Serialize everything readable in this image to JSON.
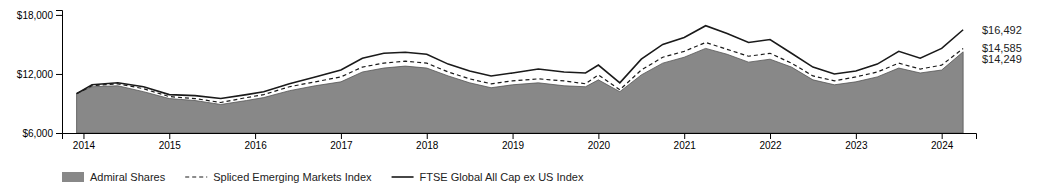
{
  "chart_data": {
    "type": "line",
    "x": [
      2013.92,
      2014.1,
      2014.4,
      2014.7,
      2015.0,
      2015.3,
      2015.6,
      2015.9,
      2016.1,
      2016.4,
      2016.7,
      2017.0,
      2017.25,
      2017.5,
      2017.75,
      2018.0,
      2018.25,
      2018.5,
      2018.75,
      2019.0,
      2019.3,
      2019.6,
      2019.85,
      2020.0,
      2020.25,
      2020.5,
      2020.75,
      2021.0,
      2021.25,
      2021.5,
      2021.75,
      2022.0,
      2022.25,
      2022.5,
      2022.75,
      2023.0,
      2023.25,
      2023.5,
      2023.75,
      2024.0,
      2024.25
    ],
    "series": [
      {
        "name": "Admiral Shares",
        "type": "area",
        "color": "#888888",
        "values": [
          10000,
          10700,
          10800,
          10200,
          9500,
          9300,
          8900,
          9300,
          9600,
          10300,
          10800,
          11200,
          12200,
          12600,
          12800,
          12600,
          11800,
          11100,
          10600,
          10900,
          11100,
          10800,
          10700,
          11400,
          10200,
          11900,
          13100,
          13700,
          14600,
          14000,
          13200,
          13500,
          12700,
          11400,
          10900,
          11200,
          11700,
          12600,
          12100,
          12400,
          14249
        ],
        "value_labels": [
          null,
          null,
          null,
          null,
          null,
          null,
          null,
          null,
          null,
          null,
          null,
          null,
          null,
          null,
          null,
          null,
          null,
          null,
          null,
          null,
          null,
          null,
          null,
          null,
          null,
          null,
          null,
          null,
          null,
          null,
          null,
          null,
          null,
          null,
          null,
          null,
          null,
          null,
          null,
          null,
          "$14,249"
        ]
      },
      {
        "name": "Spliced Emerging Markets Index",
        "type": "line",
        "color": "#1a1a1a",
        "line_style": "dashed",
        "values": [
          10000,
          10800,
          11000,
          10500,
          9700,
          9500,
          9100,
          9600,
          9900,
          10700,
          11200,
          11700,
          12700,
          13100,
          13300,
          13100,
          12200,
          11500,
          11000,
          11300,
          11500,
          11300,
          11000,
          11900,
          10400,
          12400,
          13700,
          14300,
          15200,
          14500,
          13800,
          14100,
          13100,
          11800,
          11300,
          11700,
          12200,
          13100,
          12500,
          12900,
          14585
        ],
        "value_labels": [
          null,
          null,
          null,
          null,
          null,
          null,
          null,
          null,
          null,
          null,
          null,
          null,
          null,
          null,
          null,
          null,
          null,
          null,
          null,
          null,
          null,
          null,
          null,
          null,
          null,
          null,
          null,
          null,
          null,
          null,
          null,
          null,
          null,
          null,
          null,
          null,
          null,
          null,
          null,
          null,
          "$14,585"
        ]
      },
      {
        "name": "FTSE Global All Cap ex US Index",
        "type": "line",
        "color": "#1a1a1a",
        "line_style": "solid",
        "values": [
          10000,
          10900,
          11100,
          10700,
          9900,
          9800,
          9500,
          9900,
          10200,
          11000,
          11700,
          12400,
          13600,
          14100,
          14200,
          14000,
          13000,
          12300,
          11800,
          12100,
          12500,
          12200,
          12100,
          12900,
          11100,
          13500,
          15000,
          15700,
          16900,
          16100,
          15200,
          15500,
          14100,
          12700,
          12000,
          12300,
          13000,
          14300,
          13600,
          14600,
          16492
        ],
        "value_labels": [
          null,
          null,
          null,
          null,
          null,
          null,
          null,
          null,
          null,
          null,
          null,
          null,
          null,
          null,
          null,
          null,
          null,
          null,
          null,
          null,
          null,
          null,
          null,
          null,
          null,
          null,
          null,
          null,
          null,
          null,
          null,
          null,
          null,
          null,
          null,
          null,
          null,
          null,
          null,
          null,
          "$16,492"
        ]
      }
    ],
    "xlim": [
      2013.75,
      2024.4
    ],
    "xticks": [
      2014,
      2015,
      2016,
      2017,
      2018,
      2019,
      2020,
      2021,
      2022,
      2023,
      2024
    ],
    "ylim": [
      6000,
      18500
    ],
    "yticks": [
      {
        "value": 6000,
        "label": "$6,000"
      },
      {
        "value": 12000,
        "label": "$12,000"
      },
      {
        "value": 18000,
        "label": "$18,000"
      }
    ],
    "grid": false,
    "legend": "bottom"
  }
}
